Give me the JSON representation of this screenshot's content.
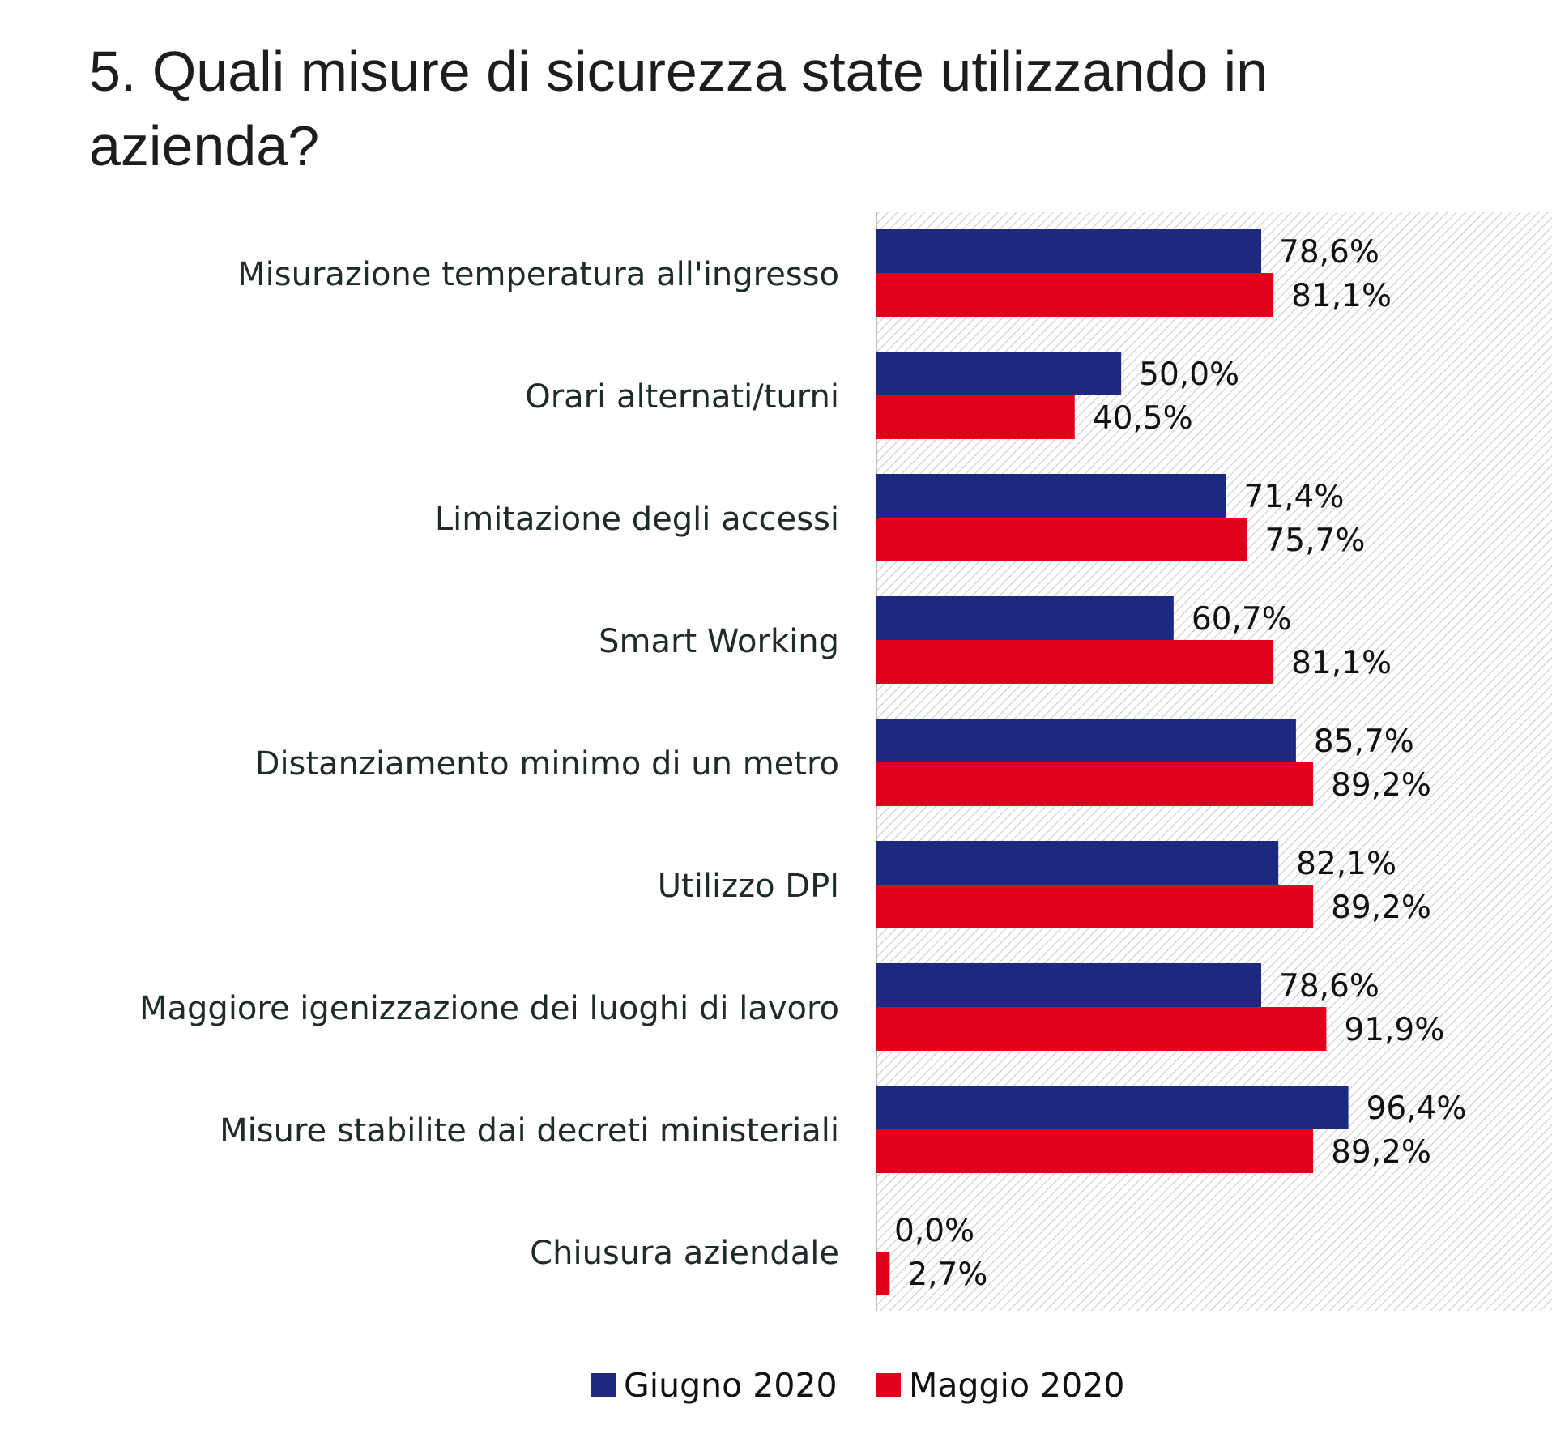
{
  "chart_data": {
    "type": "bar",
    "orientation": "horizontal",
    "title": "5. Quali misure di sicurezza state utilizzando in azienda?",
    "categories": [
      "Misurazione temperatura all'ingresso",
      "Orari alternati/turni",
      "Limitazione degli accessi",
      "Smart Working",
      "Distanziamento minimo di un metro",
      "Utilizzo DPI",
      "Maggiore igenizzazione dei luoghi di lavoro",
      "Misure stabilite dai decreti ministeriali",
      "Chiusura aziendale"
    ],
    "series": [
      {
        "name": "Giugno 2020",
        "color": "#1b2a80",
        "values": [
          78.6,
          50.0,
          71.4,
          60.7,
          85.7,
          82.1,
          78.6,
          96.4,
          0.0
        ],
        "labels": [
          "78,6%",
          "50,0%",
          "71,4%",
          "60,7%",
          "85,7%",
          "82,1%",
          "78,6%",
          "96,4%",
          "0,0%"
        ]
      },
      {
        "name": "Maggio 2020",
        "color": "#e2001a",
        "values": [
          81.1,
          40.5,
          75.7,
          81.1,
          89.2,
          89.2,
          91.9,
          89.2,
          2.7
        ],
        "labels": [
          "81,1%",
          "40,5%",
          "75,7%",
          "81,1%",
          "89,2%",
          "89,2%",
          "91,9%",
          "89,2%",
          "2,7%"
        ]
      }
    ],
    "xlim": [
      0,
      138
    ],
    "legend_position": "bottom"
  }
}
